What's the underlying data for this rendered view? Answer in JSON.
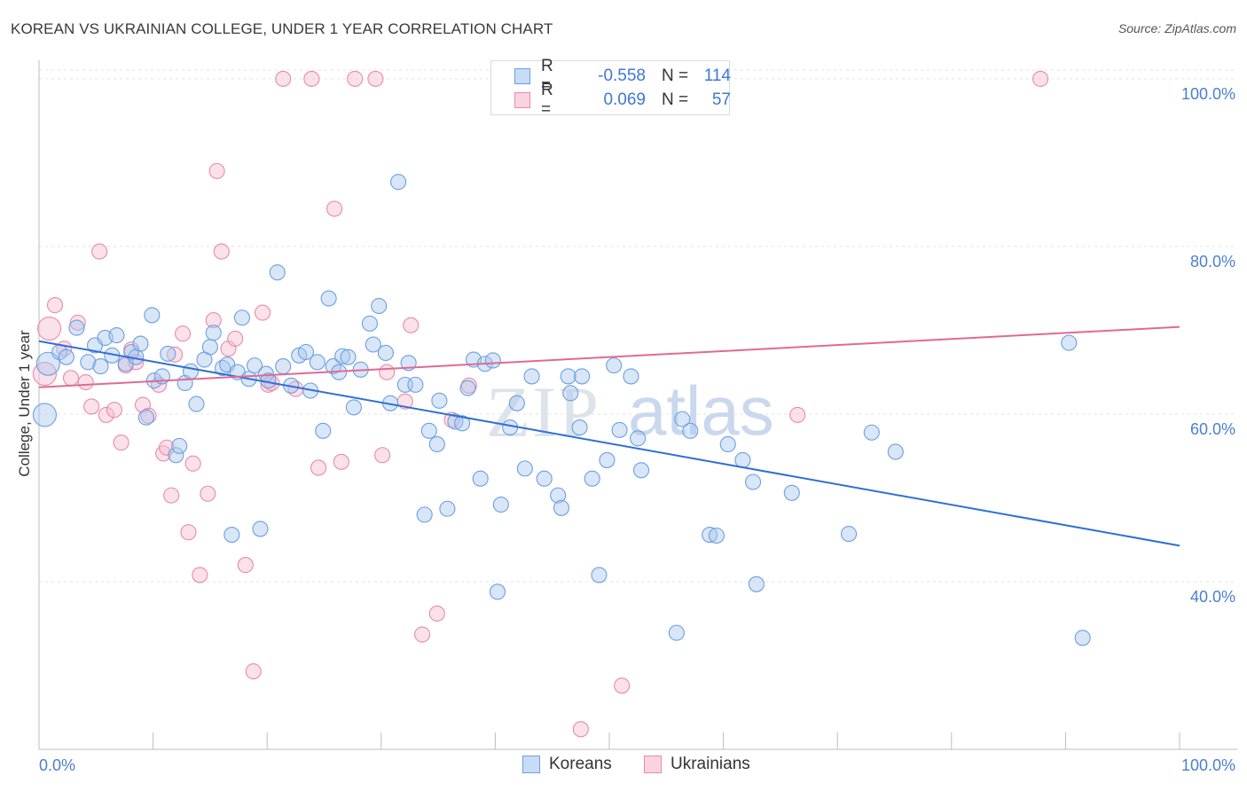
{
  "title": "KOREAN VS UKRAINIAN COLLEGE, UNDER 1 YEAR CORRELATION CHART",
  "source": "Source: ZipAtlas.com",
  "watermark": "ZIPatlas",
  "legend": {
    "items": [
      {
        "name": "Koreans",
        "r_label": "R =",
        "r_value": "-0.558",
        "n_label": "N =",
        "n_value": "114",
        "fill": "#a9c8f0",
        "stroke": "#6b9fe0"
      },
      {
        "name": "Ukrainians",
        "r_label": "R =",
        "r_value": "0.069",
        "n_label": "N =",
        "n_value": "57",
        "fill": "#f7bcd0",
        "stroke": "#e88aab"
      }
    ]
  },
  "chart_data": {
    "type": "scatter",
    "title": "KOREAN VS UKRAINIAN COLLEGE, UNDER 1 YEAR CORRELATION CHART",
    "xlabel": "",
    "ylabel": "College, Under 1 year",
    "xlim": [
      0,
      100
    ],
    "ylim": [
      20,
      102
    ],
    "x_tick_labels": [
      "0.0%",
      "100.0%"
    ],
    "y_ticks": [
      40,
      60,
      80,
      100
    ],
    "y_tick_labels": [
      "40.0%",
      "60.0%",
      "80.0%",
      "100.0%"
    ],
    "grid": true,
    "series": [
      {
        "name": "Koreans",
        "color": "#6b9fe0",
        "fill": "#a9c8f0",
        "trend": {
          "x": [
            0,
            100
          ],
          "y": [
            68.7,
            44.3
          ],
          "color": "#2f6fd6"
        },
        "points": [
          [
            0.5,
            59.9
          ],
          [
            0.8,
            66.0
          ],
          [
            1.8,
            67.4
          ],
          [
            2.4,
            66.8
          ],
          [
            3.3,
            70.3
          ],
          [
            4.3,
            66.2
          ],
          [
            4.9,
            68.2
          ],
          [
            5.4,
            65.7
          ],
          [
            5.8,
            69.1
          ],
          [
            6.4,
            67.0
          ],
          [
            6.8,
            69.4
          ],
          [
            7.6,
            66.0
          ],
          [
            8.1,
            67.4
          ],
          [
            8.5,
            66.8
          ],
          [
            8.9,
            68.4
          ],
          [
            9.4,
            59.6
          ],
          [
            9.9,
            71.8
          ],
          [
            10.1,
            64.0
          ],
          [
            10.8,
            64.5
          ],
          [
            11.3,
            67.2
          ],
          [
            12.0,
            55.1
          ],
          [
            12.3,
            56.2
          ],
          [
            12.8,
            63.7
          ],
          [
            13.3,
            65.1
          ],
          [
            13.8,
            61.2
          ],
          [
            14.5,
            66.5
          ],
          [
            15.0,
            68.0
          ],
          [
            15.3,
            69.7
          ],
          [
            16.1,
            65.5
          ],
          [
            16.5,
            65.9
          ],
          [
            16.9,
            45.6
          ],
          [
            17.4,
            65.0
          ],
          [
            17.8,
            71.5
          ],
          [
            18.4,
            64.2
          ],
          [
            18.9,
            65.8
          ],
          [
            19.4,
            46.3
          ],
          [
            19.9,
            64.8
          ],
          [
            20.1,
            64.0
          ],
          [
            20.9,
            76.9
          ],
          [
            21.4,
            65.7
          ],
          [
            22.1,
            63.4
          ],
          [
            22.8,
            67.0
          ],
          [
            23.4,
            67.4
          ],
          [
            23.8,
            62.8
          ],
          [
            24.4,
            66.2
          ],
          [
            24.9,
            58.0
          ],
          [
            25.4,
            73.8
          ],
          [
            25.8,
            65.7
          ],
          [
            26.3,
            65.0
          ],
          [
            26.6,
            66.9
          ],
          [
            27.1,
            66.8
          ],
          [
            27.6,
            60.8
          ],
          [
            28.2,
            65.3
          ],
          [
            29.0,
            70.8
          ],
          [
            29.3,
            68.3
          ],
          [
            29.8,
            72.9
          ],
          [
            30.4,
            67.3
          ],
          [
            30.8,
            61.3
          ],
          [
            31.5,
            87.7
          ],
          [
            32.1,
            63.5
          ],
          [
            32.4,
            66.1
          ],
          [
            33.0,
            63.5
          ],
          [
            33.8,
            48.0
          ],
          [
            34.2,
            58.0
          ],
          [
            34.9,
            56.4
          ],
          [
            35.1,
            61.6
          ],
          [
            35.8,
            48.7
          ],
          [
            36.5,
            59.1
          ],
          [
            37.1,
            58.9
          ],
          [
            37.6,
            63.1
          ],
          [
            38.1,
            66.5
          ],
          [
            38.7,
            52.3
          ],
          [
            39.1,
            66.0
          ],
          [
            39.8,
            66.4
          ],
          [
            40.2,
            38.8
          ],
          [
            40.5,
            49.2
          ],
          [
            41.3,
            58.4
          ],
          [
            41.9,
            61.3
          ],
          [
            42.6,
            53.5
          ],
          [
            43.2,
            64.5
          ],
          [
            44.3,
            52.3
          ],
          [
            45.5,
            50.3
          ],
          [
            45.8,
            48.8
          ],
          [
            46.4,
            64.5
          ],
          [
            46.6,
            62.5
          ],
          [
            47.4,
            58.4
          ],
          [
            47.6,
            64.5
          ],
          [
            48.5,
            52.3
          ],
          [
            49.1,
            40.8
          ],
          [
            49.8,
            54.5
          ],
          [
            50.4,
            65.8
          ],
          [
            50.9,
            58.1
          ],
          [
            51.9,
            64.5
          ],
          [
            52.5,
            57.1
          ],
          [
            52.8,
            53.3
          ],
          [
            55.9,
            33.9
          ],
          [
            56.4,
            59.4
          ],
          [
            57.1,
            58.0
          ],
          [
            58.8,
            45.6
          ],
          [
            59.4,
            45.5
          ],
          [
            60.4,
            56.4
          ],
          [
            61.7,
            54.5
          ],
          [
            62.6,
            51.9
          ],
          [
            62.9,
            39.7
          ],
          [
            66.0,
            50.6
          ],
          [
            71.0,
            45.7
          ],
          [
            73.0,
            57.8
          ],
          [
            75.1,
            55.5
          ],
          [
            90.3,
            68.5
          ],
          [
            91.5,
            33.3
          ]
        ]
      },
      {
        "name": "Ukrainians",
        "color": "#e88aab",
        "fill": "#f7bcd0",
        "trend": {
          "x": [
            0,
            100
          ],
          "y": [
            63.2,
            70.4
          ],
          "color": "#e06a93"
        },
        "points": [
          [
            0.5,
            64.8
          ],
          [
            0.9,
            70.2
          ],
          [
            1.4,
            73.0
          ],
          [
            2.2,
            67.8
          ],
          [
            2.8,
            64.3
          ],
          [
            3.4,
            70.9
          ],
          [
            4.1,
            63.8
          ],
          [
            4.6,
            60.9
          ],
          [
            5.3,
            79.4
          ],
          [
            5.9,
            59.9
          ],
          [
            6.6,
            60.5
          ],
          [
            7.2,
            56.6
          ],
          [
            7.6,
            65.8
          ],
          [
            8.1,
            67.7
          ],
          [
            8.5,
            66.2
          ],
          [
            9.1,
            61.1
          ],
          [
            9.6,
            59.8
          ],
          [
            10.5,
            63.5
          ],
          [
            10.9,
            55.3
          ],
          [
            11.2,
            56.0
          ],
          [
            11.6,
            50.3
          ],
          [
            11.9,
            67.1
          ],
          [
            12.6,
            69.6
          ],
          [
            13.1,
            45.9
          ],
          [
            13.5,
            54.1
          ],
          [
            14.1,
            40.8
          ],
          [
            14.8,
            50.5
          ],
          [
            15.3,
            71.2
          ],
          [
            15.6,
            89.0
          ],
          [
            16.0,
            79.4
          ],
          [
            16.6,
            67.8
          ],
          [
            17.2,
            69.0
          ],
          [
            18.1,
            42.0
          ],
          [
            18.8,
            29.3
          ],
          [
            19.6,
            72.1
          ],
          [
            20.1,
            63.5
          ],
          [
            21.4,
            100.0
          ],
          [
            22.5,
            63.0
          ],
          [
            23.9,
            100.0
          ],
          [
            24.5,
            53.6
          ],
          [
            25.9,
            84.5
          ],
          [
            26.5,
            54.3
          ],
          [
            27.7,
            100.0
          ],
          [
            29.5,
            100.0
          ],
          [
            30.1,
            55.1
          ],
          [
            30.5,
            65.0
          ],
          [
            32.1,
            61.5
          ],
          [
            32.6,
            70.6
          ],
          [
            33.6,
            33.7
          ],
          [
            34.9,
            36.2
          ],
          [
            36.2,
            59.3
          ],
          [
            37.7,
            63.4
          ],
          [
            47.5,
            22.4
          ],
          [
            51.1,
            27.6
          ],
          [
            66.5,
            59.9
          ],
          [
            87.8,
            100.0
          ],
          [
            20.4,
            63.7
          ]
        ]
      }
    ]
  }
}
